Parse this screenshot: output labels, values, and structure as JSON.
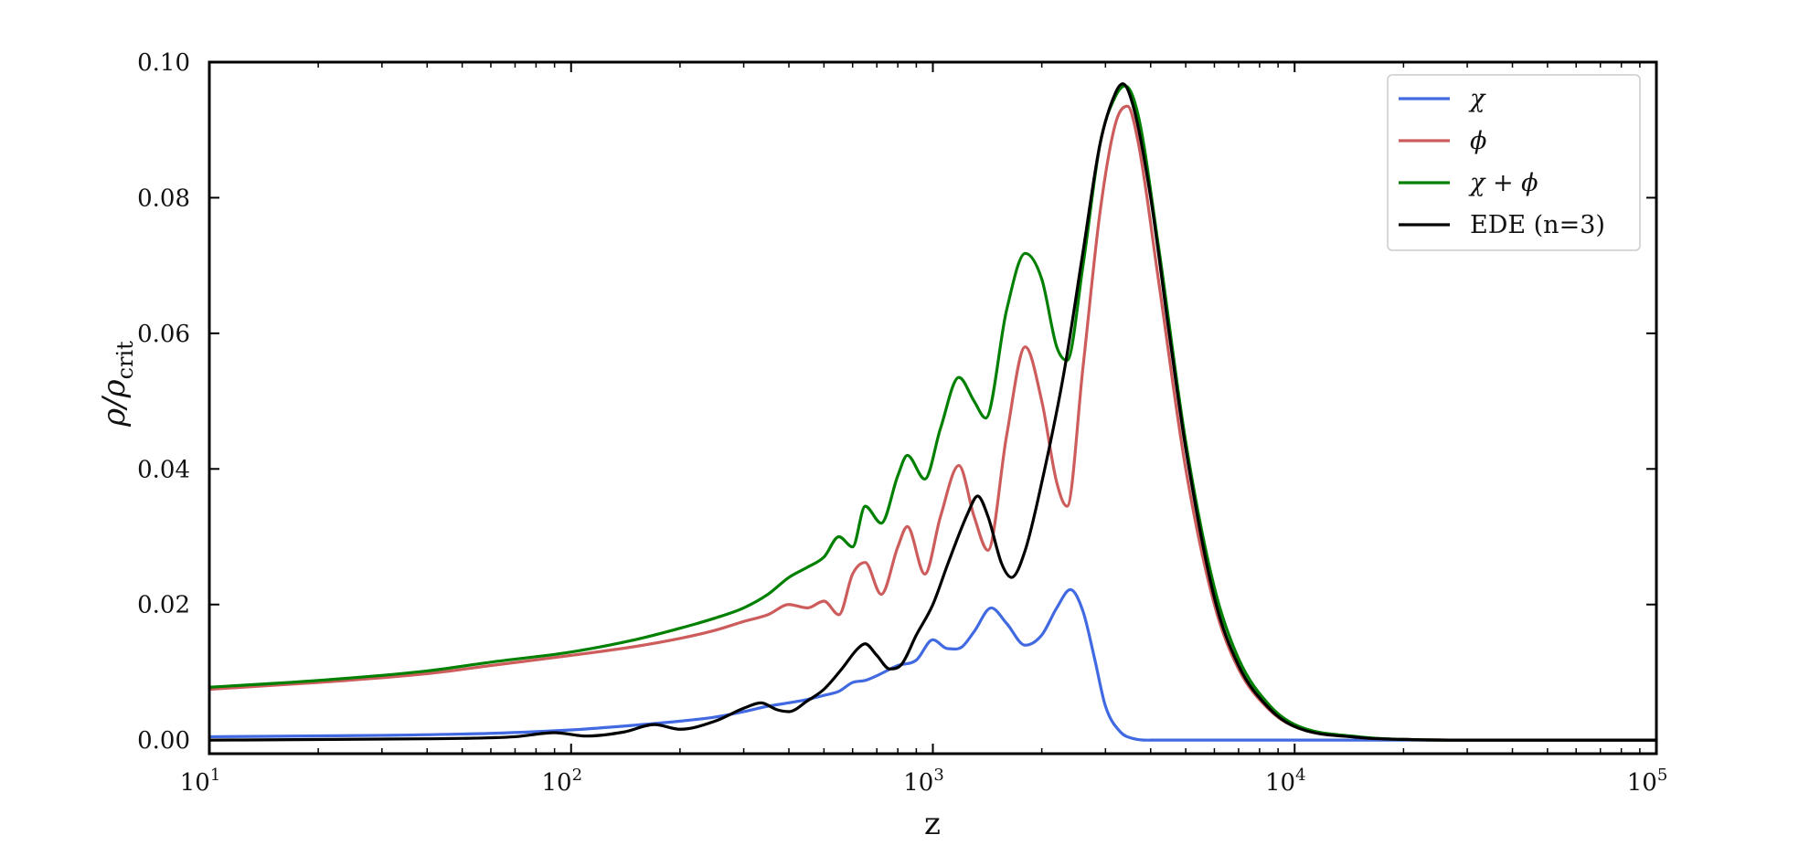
{
  "chart_data": {
    "type": "line",
    "xscale": "log",
    "xlabel": "z",
    "ylabel_base": "ρ/ρ",
    "ylabel_sub": "crit",
    "xlim": [
      10,
      100000
    ],
    "ylim": [
      -0.002,
      0.1
    ],
    "x_ticks": [
      {
        "value": 10,
        "base": "10",
        "exp": "1"
      },
      {
        "value": 100,
        "base": "10",
        "exp": "2"
      },
      {
        "value": 1000,
        "base": "10",
        "exp": "3"
      },
      {
        "value": 10000,
        "base": "10",
        "exp": "4"
      },
      {
        "value": 100000,
        "base": "10",
        "exp": "5"
      }
    ],
    "y_ticks": [
      {
        "value": 0.0,
        "label": "0.00"
      },
      {
        "value": 0.02,
        "label": "0.02"
      },
      {
        "value": 0.04,
        "label": "0.04"
      },
      {
        "value": 0.06,
        "label": "0.06"
      },
      {
        "value": 0.08,
        "label": "0.08"
      },
      {
        "value": 0.1,
        "label": "0.10"
      }
    ],
    "grid": false,
    "legend_position": "top-right",
    "series": [
      {
        "name": "χ",
        "color": "#4169E1",
        "points": [
          [
            10,
            0.0005
          ],
          [
            30,
            0.0007
          ],
          [
            60,
            0.001
          ],
          [
            100,
            0.0015
          ],
          [
            150,
            0.0022
          ],
          [
            200,
            0.0028
          ],
          [
            250,
            0.0034
          ],
          [
            300,
            0.0042
          ],
          [
            350,
            0.005
          ],
          [
            400,
            0.0055
          ],
          [
            450,
            0.006
          ],
          [
            500,
            0.0066
          ],
          [
            550,
            0.0072
          ],
          [
            600,
            0.0085
          ],
          [
            650,
            0.0088
          ],
          [
            700,
            0.0095
          ],
          [
            800,
            0.011
          ],
          [
            900,
            0.0118
          ],
          [
            1000,
            0.0148
          ],
          [
            1100,
            0.0135
          ],
          [
            1200,
            0.0137
          ],
          [
            1300,
            0.016
          ],
          [
            1450,
            0.0195
          ],
          [
            1600,
            0.0172
          ],
          [
            1800,
            0.014
          ],
          [
            2000,
            0.0155
          ],
          [
            2200,
            0.0195
          ],
          [
            2400,
            0.0222
          ],
          [
            2600,
            0.019
          ],
          [
            2800,
            0.012
          ],
          [
            3000,
            0.005
          ],
          [
            3300,
            0.0012
          ],
          [
            3600,
            0.0002
          ],
          [
            4000,
            0.0
          ],
          [
            10000,
            0.0
          ],
          [
            100000,
            0.0
          ]
        ]
      },
      {
        "name": "ϕ",
        "color": "#CD5C5C",
        "points": [
          [
            10,
            0.0075
          ],
          [
            20,
            0.0085
          ],
          [
            40,
            0.0098
          ],
          [
            60,
            0.011
          ],
          [
            100,
            0.0125
          ],
          [
            150,
            0.0138
          ],
          [
            200,
            0.015
          ],
          [
            250,
            0.0162
          ],
          [
            300,
            0.0175
          ],
          [
            350,
            0.0185
          ],
          [
            400,
            0.02
          ],
          [
            450,
            0.0195
          ],
          [
            500,
            0.0205
          ],
          [
            550,
            0.0185
          ],
          [
            600,
            0.0245
          ],
          [
            650,
            0.0262
          ],
          [
            720,
            0.0215
          ],
          [
            800,
            0.0285
          ],
          [
            850,
            0.0315
          ],
          [
            950,
            0.0245
          ],
          [
            1050,
            0.033
          ],
          [
            1180,
            0.0405
          ],
          [
            1300,
            0.033
          ],
          [
            1420,
            0.028
          ],
          [
            1600,
            0.045
          ],
          [
            1800,
            0.058
          ],
          [
            2000,
            0.05
          ],
          [
            2200,
            0.038
          ],
          [
            2350,
            0.0345
          ],
          [
            2600,
            0.055
          ],
          [
            2900,
            0.078
          ],
          [
            3200,
            0.091
          ],
          [
            3450,
            0.0935
          ],
          [
            3700,
            0.088
          ],
          [
            4200,
            0.068
          ],
          [
            5000,
            0.04
          ],
          [
            6000,
            0.02
          ],
          [
            7000,
            0.0105
          ],
          [
            8500,
            0.0045
          ],
          [
            10000,
            0.002
          ],
          [
            15000,
            0.0004
          ],
          [
            20000,
            0.0001
          ],
          [
            30000,
            0.0
          ],
          [
            100000,
            0.0
          ]
        ]
      },
      {
        "name": "χ + ϕ",
        "color": "#008000",
        "points": [
          [
            10,
            0.0078
          ],
          [
            20,
            0.0088
          ],
          [
            40,
            0.0102
          ],
          [
            60,
            0.0115
          ],
          [
            100,
            0.013
          ],
          [
            150,
            0.0148
          ],
          [
            200,
            0.0165
          ],
          [
            250,
            0.018
          ],
          [
            300,
            0.0195
          ],
          [
            350,
            0.0215
          ],
          [
            400,
            0.024
          ],
          [
            450,
            0.0255
          ],
          [
            500,
            0.027
          ],
          [
            550,
            0.03
          ],
          [
            600,
            0.0285
          ],
          [
            650,
            0.0345
          ],
          [
            720,
            0.032
          ],
          [
            800,
            0.039
          ],
          [
            850,
            0.042
          ],
          [
            950,
            0.0385
          ],
          [
            1050,
            0.046
          ],
          [
            1180,
            0.0535
          ],
          [
            1300,
            0.05
          ],
          [
            1400,
            0.0475
          ],
          [
            1600,
            0.0635
          ],
          [
            1800,
            0.0718
          ],
          [
            2000,
            0.068
          ],
          [
            2200,
            0.058
          ],
          [
            2350,
            0.056
          ],
          [
            2600,
            0.07
          ],
          [
            2900,
            0.088
          ],
          [
            3200,
            0.095
          ],
          [
            3400,
            0.0965
          ],
          [
            3700,
            0.092
          ],
          [
            4200,
            0.073
          ],
          [
            5000,
            0.044
          ],
          [
            6000,
            0.0225
          ],
          [
            7000,
            0.012
          ],
          [
            8500,
            0.0052
          ],
          [
            10000,
            0.0023
          ],
          [
            15000,
            0.0005
          ],
          [
            20000,
            0.0001
          ],
          [
            30000,
            0.0
          ],
          [
            100000,
            0.0
          ]
        ]
      },
      {
        "name": "EDE (n=3)",
        "color": "#000000",
        "points": [
          [
            10,
            0.0
          ],
          [
            40,
            0.0002
          ],
          [
            70,
            0.0005
          ],
          [
            90,
            0.0011
          ],
          [
            110,
            0.0006
          ],
          [
            140,
            0.0012
          ],
          [
            170,
            0.0023
          ],
          [
            200,
            0.0016
          ],
          [
            250,
            0.0028
          ],
          [
            300,
            0.0047
          ],
          [
            335,
            0.0055
          ],
          [
            370,
            0.0045
          ],
          [
            400,
            0.0042
          ],
          [
            450,
            0.0058
          ],
          [
            500,
            0.0075
          ],
          [
            560,
            0.0105
          ],
          [
            620,
            0.0135
          ],
          [
            650,
            0.0142
          ],
          [
            700,
            0.0125
          ],
          [
            760,
            0.0105
          ],
          [
            820,
            0.0112
          ],
          [
            900,
            0.0155
          ],
          [
            1000,
            0.02
          ],
          [
            1100,
            0.026
          ],
          [
            1250,
            0.0335
          ],
          [
            1330,
            0.036
          ],
          [
            1420,
            0.033
          ],
          [
            1550,
            0.026
          ],
          [
            1650,
            0.024
          ],
          [
            1800,
            0.028
          ],
          [
            2000,
            0.038
          ],
          [
            2300,
            0.054
          ],
          [
            2600,
            0.072
          ],
          [
            2900,
            0.088
          ],
          [
            3200,
            0.0955
          ],
          [
            3350,
            0.0968
          ],
          [
            3600,
            0.093
          ],
          [
            4000,
            0.08
          ],
          [
            4500,
            0.06
          ],
          [
            5000,
            0.043
          ],
          [
            6000,
            0.021
          ],
          [
            7000,
            0.011
          ],
          [
            8500,
            0.0047
          ],
          [
            10000,
            0.002
          ],
          [
            15000,
            0.0004
          ],
          [
            20000,
            0.0001
          ],
          [
            30000,
            0.0
          ],
          [
            100000,
            0.0
          ]
        ]
      }
    ]
  }
}
